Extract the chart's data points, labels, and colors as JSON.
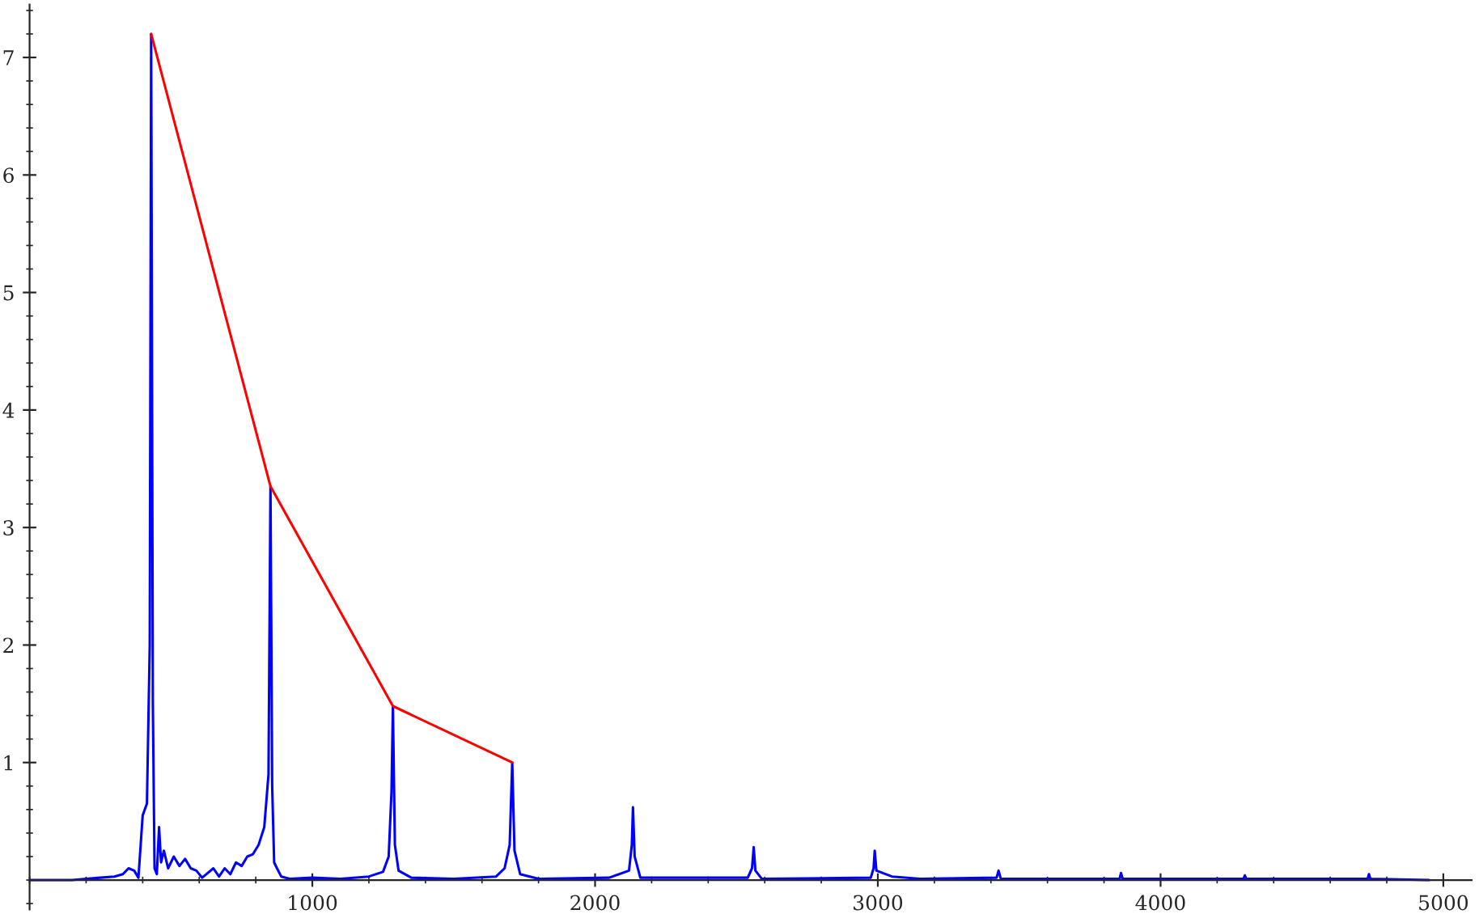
{
  "chart_data": {
    "type": "line",
    "xlim": [
      0,
      5100
    ],
    "ylim": [
      -0.25,
      7.45
    ],
    "xticks": [
      1000,
      2000,
      3000,
      4000,
      5000
    ],
    "yticks": [
      1,
      2,
      3,
      4,
      5,
      6,
      7
    ],
    "grid": false,
    "marker": "none",
    "line_style": "solid",
    "series": [
      {
        "color": "#0000ff",
        "x": [
          0,
          150,
          200,
          250,
          300,
          330,
          350,
          370,
          385,
          400,
          415,
          425,
          430,
          436,
          442,
          450,
          458,
          465,
          475,
          490,
          510,
          530,
          550,
          570,
          590,
          610,
          630,
          650,
          670,
          690,
          710,
          730,
          750,
          770,
          790,
          810,
          830,
          845,
          852,
          858,
          865,
          875,
          890,
          920,
          1000,
          1100,
          1200,
          1250,
          1270,
          1280,
          1285,
          1292,
          1305,
          1350,
          1500,
          1650,
          1680,
          1698,
          1707,
          1715,
          1735,
          1800,
          2050,
          2120,
          2130,
          2134,
          2140,
          2160,
          2540,
          2555,
          2561,
          2567,
          2590,
          2975,
          2985,
          2989,
          2995,
          3050,
          3150,
          3420,
          3427,
          3435,
          3855,
          3860,
          3866,
          4293,
          4298,
          4303,
          4732,
          4737,
          4742,
          4950
        ],
        "values": [
          0,
          0,
          0.01,
          0.02,
          0.03,
          0.05,
          0.1,
          0.08,
          0.02,
          0.55,
          0.65,
          2.0,
          7.2,
          1.5,
          0.1,
          0.05,
          0.45,
          0.15,
          0.25,
          0.1,
          0.2,
          0.12,
          0.18,
          0.1,
          0.08,
          0.02,
          0.06,
          0.1,
          0.03,
          0.1,
          0.05,
          0.15,
          0.12,
          0.2,
          0.22,
          0.3,
          0.45,
          0.9,
          3.35,
          0.8,
          0.15,
          0.1,
          0.03,
          0.01,
          0.02,
          0.01,
          0.03,
          0.07,
          0.2,
          0.75,
          1.48,
          0.3,
          0.08,
          0.02,
          0.01,
          0.03,
          0.1,
          0.3,
          1.0,
          0.25,
          0.05,
          0.01,
          0.02,
          0.08,
          0.3,
          0.62,
          0.2,
          0.02,
          0.02,
          0.1,
          0.28,
          0.08,
          0.01,
          0.02,
          0.1,
          0.25,
          0.08,
          0.03,
          0.01,
          0.02,
          0.08,
          0.01,
          0.01,
          0.06,
          0.01,
          0.01,
          0.04,
          0.01,
          0.01,
          0.05,
          0.01,
          0
        ]
      },
      {
        "color": "#ff0000",
        "x": [
          430,
          852,
          1285,
          1707
        ],
        "values": [
          7.2,
          3.35,
          1.48,
          1.0
        ]
      }
    ]
  }
}
